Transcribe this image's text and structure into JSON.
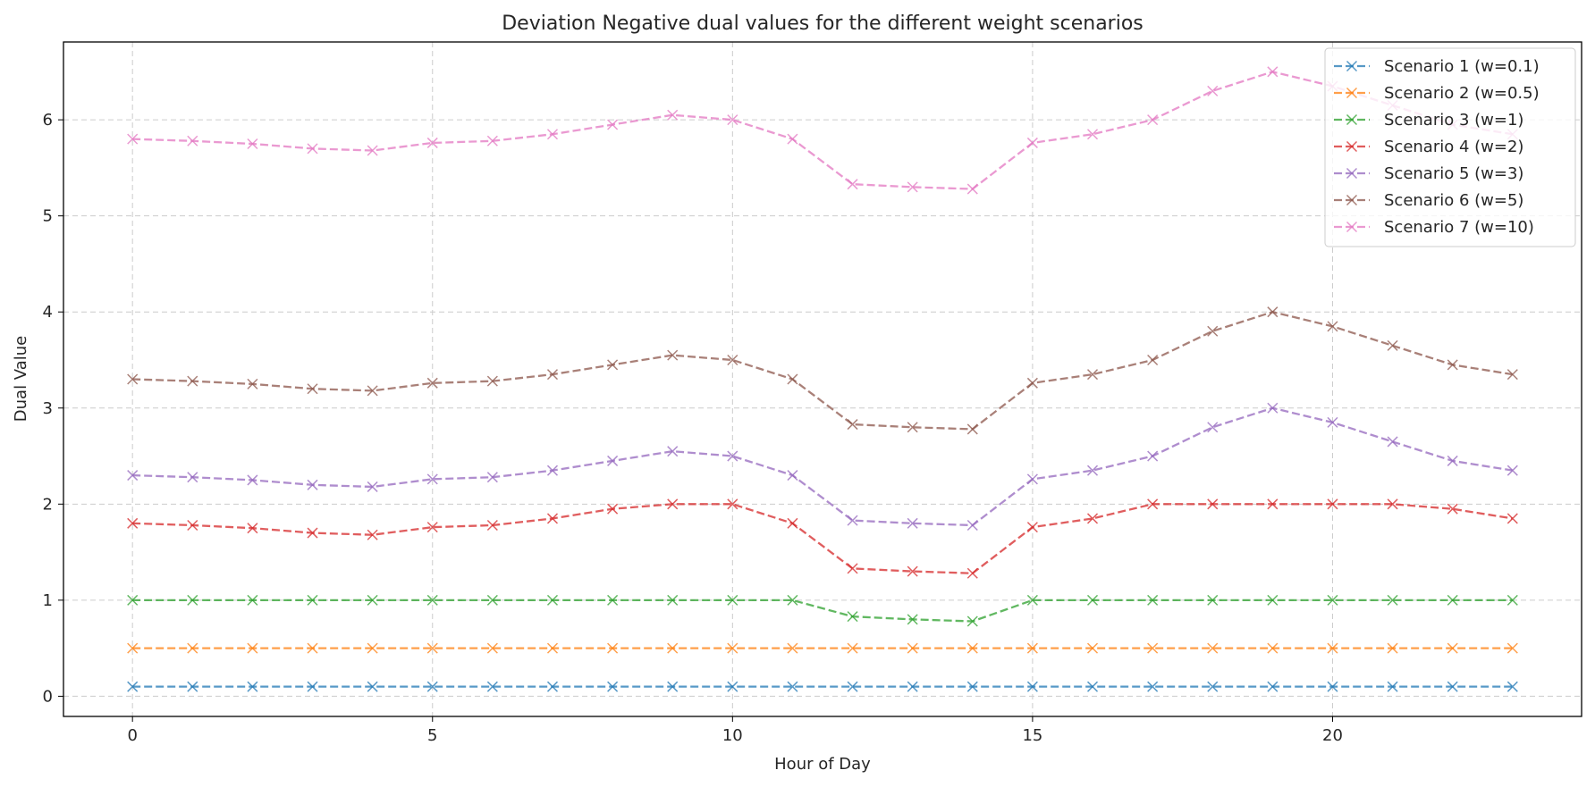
{
  "chart_data": {
    "type": "line",
    "title": "Deviation Negative dual values for the different weight scenarios",
    "xlabel": "Hour of Day",
    "ylabel": "Dual Value",
    "xlim": [
      -1.15,
      24.15
    ],
    "ylim": [
      -0.21,
      6.81
    ],
    "xticks": [
      0,
      5,
      10,
      15,
      20
    ],
    "yticks": [
      0,
      1,
      2,
      3,
      4,
      5,
      6
    ],
    "grid": true,
    "legend_position": "top-right",
    "marker": "x",
    "line_style": "dashed",
    "x": [
      0,
      1,
      2,
      3,
      4,
      5,
      6,
      7,
      8,
      9,
      10,
      11,
      12,
      13,
      14,
      15,
      16,
      17,
      18,
      19,
      20,
      21,
      22,
      23
    ],
    "series": [
      {
        "name": "Scenario 1 (w=0.1)",
        "color": "#1f77b4",
        "values": [
          0.1,
          0.1,
          0.1,
          0.1,
          0.1,
          0.1,
          0.1,
          0.1,
          0.1,
          0.1,
          0.1,
          0.1,
          0.1,
          0.1,
          0.1,
          0.1,
          0.1,
          0.1,
          0.1,
          0.1,
          0.1,
          0.1,
          0.1,
          0.1
        ]
      },
      {
        "name": "Scenario 2 (w=0.5)",
        "color": "#ff7f0e",
        "values": [
          0.5,
          0.5,
          0.5,
          0.5,
          0.5,
          0.5,
          0.5,
          0.5,
          0.5,
          0.5,
          0.5,
          0.5,
          0.5,
          0.5,
          0.5,
          0.5,
          0.5,
          0.5,
          0.5,
          0.5,
          0.5,
          0.5,
          0.5,
          0.5
        ]
      },
      {
        "name": "Scenario 3 (w=1)",
        "color": "#2ca02c",
        "values": [
          1,
          1,
          1,
          1,
          1,
          1,
          1,
          1,
          1,
          1,
          1,
          1,
          0.83,
          0.8,
          0.78,
          1,
          1,
          1,
          1,
          1,
          1,
          1,
          1,
          1
        ]
      },
      {
        "name": "Scenario 4 (w=2)",
        "color": "#d62728",
        "values": [
          1.8,
          1.78,
          1.75,
          1.7,
          1.68,
          1.76,
          1.78,
          1.85,
          1.95,
          2.0,
          2.0,
          1.8,
          1.33,
          1.3,
          1.28,
          1.76,
          1.85,
          2.0,
          2.0,
          2.0,
          2.0,
          2.0,
          1.95,
          1.85
        ]
      },
      {
        "name": "Scenario 5 (w=3)",
        "color": "#9467bd",
        "values": [
          2.3,
          2.28,
          2.25,
          2.2,
          2.18,
          2.26,
          2.28,
          2.35,
          2.45,
          2.55,
          2.5,
          2.3,
          1.83,
          1.8,
          1.78,
          2.26,
          2.35,
          2.5,
          2.8,
          3.0,
          2.85,
          2.65,
          2.45,
          2.35
        ]
      },
      {
        "name": "Scenario 6 (w=5)",
        "color": "#8c564b",
        "values": [
          3.3,
          3.28,
          3.25,
          3.2,
          3.18,
          3.26,
          3.28,
          3.35,
          3.45,
          3.55,
          3.5,
          3.3,
          2.83,
          2.8,
          2.78,
          3.26,
          3.35,
          3.5,
          3.8,
          4.0,
          3.85,
          3.65,
          3.45,
          3.35
        ]
      },
      {
        "name": "Scenario 7 (w=10)",
        "color": "#e377c2",
        "values": [
          5.8,
          5.78,
          5.75,
          5.7,
          5.68,
          5.76,
          5.78,
          5.85,
          5.95,
          6.05,
          6.0,
          5.8,
          5.33,
          5.3,
          5.28,
          5.76,
          5.85,
          6.0,
          6.3,
          6.5,
          6.35,
          6.15,
          5.95,
          5.85
        ]
      }
    ]
  }
}
